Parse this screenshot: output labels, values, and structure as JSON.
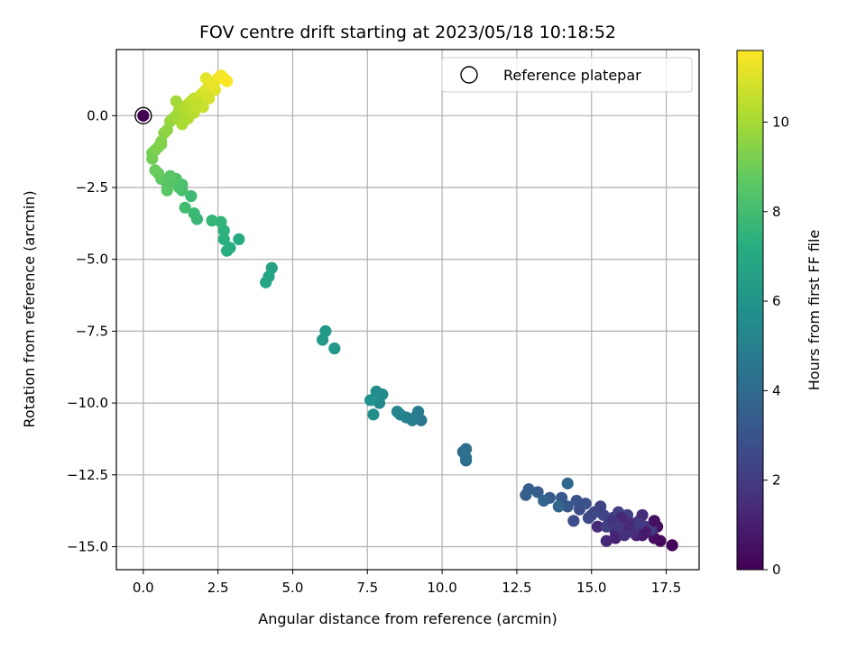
{
  "chart_data": {
    "type": "scatter",
    "title": "FOV centre drift starting at 2023/05/18 10:18:52",
    "xlabel": "Angular distance from reference (arcmin)",
    "ylabel": "Rotation from reference (arcmin)",
    "xlim": [
      -0.9,
      18.6
    ],
    "ylim": [
      -15.8,
      2.3
    ],
    "x_ticks": [
      0.0,
      2.5,
      5.0,
      7.5,
      10.0,
      12.5,
      15.0,
      17.5
    ],
    "x_tick_labels": [
      "0.0",
      "2.5",
      "5.0",
      "7.5",
      "10.0",
      "12.5",
      "15.0",
      "17.5"
    ],
    "y_ticks": [
      0.0,
      -2.5,
      -5.0,
      -7.5,
      -10.0,
      -12.5,
      -15.0
    ],
    "y_tick_labels": [
      "0.0",
      "−2.5",
      "−5.0",
      "−7.5",
      "−10.0",
      "−12.5",
      "−15.0"
    ],
    "grid": true,
    "legend": {
      "position": "top-right",
      "entries": [
        "Reference platepar"
      ]
    },
    "colorbar": {
      "label": "Hours from first FF file",
      "range": [
        0,
        11.6
      ],
      "ticks": [
        0,
        2,
        4,
        6,
        8,
        10
      ],
      "tick_labels": [
        "0",
        "2",
        "4",
        "6",
        "8",
        "10"
      ],
      "colormap": "viridis"
    },
    "reference_point": {
      "x": 0.0,
      "y": 0.0,
      "t": 0.0
    },
    "series": [
      {
        "x": [
          17.7,
          17.3,
          17.1,
          17.0,
          17.2,
          16.9,
          16.7,
          16.5,
          16.3,
          16.0,
          15.8,
          15.5,
          15.2,
          15.6,
          16.1,
          16.4,
          16.6,
          16.8,
          17.0,
          16.2,
          15.9,
          15.7,
          15.4,
          15.1,
          14.9,
          14.6,
          14.4,
          14.8,
          14.5,
          14.2,
          14.0,
          13.6,
          13.2,
          12.9,
          12.8,
          13.4,
          13.9,
          14.2,
          16.5,
          16.8,
          17.1,
          16.7,
          16.3,
          16.0,
          15.8,
          15.5,
          15.3,
          15.0,
          16.4,
          16.1,
          15.7,
          15.9,
          16.6
        ],
        "y": [
          -14.95,
          -14.8,
          -14.7,
          -14.5,
          -14.3,
          -14.4,
          -14.6,
          -14.5,
          -14.3,
          -14.4,
          -14.5,
          -14.8,
          -14.3,
          -14.1,
          -14.0,
          -14.2,
          -14.1,
          -14.3,
          -14.4,
          -13.9,
          -13.8,
          -14.0,
          -13.9,
          -13.8,
          -14.0,
          -13.7,
          -14.1,
          -13.5,
          -13.4,
          -13.6,
          -13.3,
          -13.3,
          -13.1,
          -13.0,
          -13.2,
          -13.4,
          -13.6,
          -12.8,
          -14.6,
          -14.5,
          -14.1,
          -13.9,
          -14.2,
          -14.0,
          -14.7,
          -14.3,
          -13.6,
          -13.9,
          -14.5,
          -14.6,
          -14.1,
          -14.3,
          -14.2
        ],
        "t": [
          0.1,
          0.3,
          0.4,
          0.6,
          0.5,
          0.7,
          0.8,
          0.9,
          1.0,
          1.1,
          1.2,
          1.3,
          1.4,
          1.5,
          1.6,
          1.7,
          1.8,
          1.9,
          2.0,
          2.1,
          2.2,
          2.3,
          2.4,
          2.5,
          2.6,
          2.7,
          2.8,
          2.9,
          3.0,
          3.1,
          3.2,
          3.3,
          3.4,
          3.5,
          3.6,
          3.7,
          3.8,
          3.9,
          1.05,
          0.85,
          0.55,
          1.45,
          1.35,
          1.25,
          1.15,
          2.15,
          2.35,
          2.45,
          1.55,
          1.65,
          1.75,
          1.85,
          1.95
        ]
      },
      {
        "x": [
          10.8,
          10.7,
          10.8,
          10.8,
          9.3,
          9.1,
          9.2,
          9.0,
          8.8,
          8.6,
          8.5,
          7.9,
          8.0,
          7.8,
          7.7,
          7.6
        ],
        "y": [
          -12.0,
          -11.7,
          -11.6,
          -11.9,
          -10.6,
          -10.5,
          -10.3,
          -10.6,
          -10.5,
          -10.4,
          -10.3,
          -10.0,
          -9.7,
          -9.6,
          -10.4,
          -9.9
        ],
        "t": [
          4.0,
          4.1,
          4.2,
          4.3,
          4.6,
          4.7,
          4.8,
          4.9,
          5.0,
          5.1,
          5.2,
          5.4,
          5.5,
          5.6,
          5.7,
          5.8
        ]
      },
      {
        "x": [
          6.4,
          6.1,
          6.0,
          4.3,
          4.2,
          4.1,
          3.2,
          2.9,
          2.8,
          2.7,
          2.7,
          2.6,
          2.3,
          1.8,
          1.7,
          1.6,
          1.4,
          1.3,
          1.3,
          1.1,
          1.0,
          0.8,
          0.8,
          0.6,
          0.5,
          0.4,
          1.2,
          0.9
        ],
        "y": [
          -8.1,
          -7.5,
          -7.8,
          -5.3,
          -5.6,
          -5.8,
          -4.3,
          -4.6,
          -4.7,
          -4.3,
          -4.0,
          -3.7,
          -3.65,
          -3.6,
          -3.4,
          -2.8,
          -3.2,
          -2.6,
          -2.4,
          -2.2,
          -2.3,
          -2.4,
          -2.6,
          -2.2,
          -2.0,
          -1.9,
          -2.5,
          -2.1
        ],
        "t": [
          6.1,
          6.2,
          6.3,
          6.6,
          6.7,
          6.8,
          7.0,
          7.1,
          7.2,
          7.3,
          7.4,
          7.5,
          7.6,
          7.7,
          7.8,
          7.9,
          8.0,
          8.1,
          8.2,
          8.3,
          8.4,
          8.5,
          8.6,
          8.7,
          8.8,
          8.9,
          8.25,
          8.55
        ]
      },
      {
        "x": [
          0.3,
          0.3,
          0.4,
          0.5,
          0.6,
          0.7,
          0.8,
          0.6,
          0.9,
          1.0,
          1.1,
          1.2,
          1.3,
          1.4,
          1.5,
          1.6,
          1.7,
          1.8,
          1.9,
          2.0,
          2.1,
          2.2,
          2.3,
          2.4,
          2.5,
          2.6,
          2.7,
          2.8,
          2.4,
          2.2,
          2.0,
          1.7,
          1.5,
          1.3,
          1.1,
          1.4,
          1.6,
          1.8,
          2.1,
          2.3
        ],
        "y": [
          -1.3,
          -1.5,
          -1.2,
          -1.1,
          -0.9,
          -0.6,
          -0.5,
          -1.0,
          -0.2,
          -0.1,
          0.0,
          0.2,
          0.3,
          0.2,
          0.4,
          0.5,
          0.6,
          0.5,
          0.7,
          0.8,
          0.9,
          1.0,
          1.1,
          1.2,
          1.3,
          1.4,
          1.3,
          1.2,
          0.9,
          0.6,
          0.3,
          0.1,
          -0.1,
          -0.3,
          0.5,
          0.0,
          0.2,
          0.4,
          1.3,
          1.1
        ],
        "t": [
          9.0,
          9.1,
          9.2,
          9.3,
          9.4,
          9.5,
          9.6,
          9.35,
          9.7,
          9.8,
          9.9,
          10.0,
          10.1,
          10.2,
          10.3,
          10.4,
          10.5,
          10.6,
          10.7,
          10.8,
          10.9,
          11.0,
          11.1,
          11.2,
          11.3,
          11.4,
          11.5,
          11.55,
          11.05,
          10.85,
          10.65,
          10.45,
          10.25,
          10.05,
          9.95,
          10.15,
          10.35,
          10.55,
          11.15,
          11.25
        ]
      }
    ]
  }
}
